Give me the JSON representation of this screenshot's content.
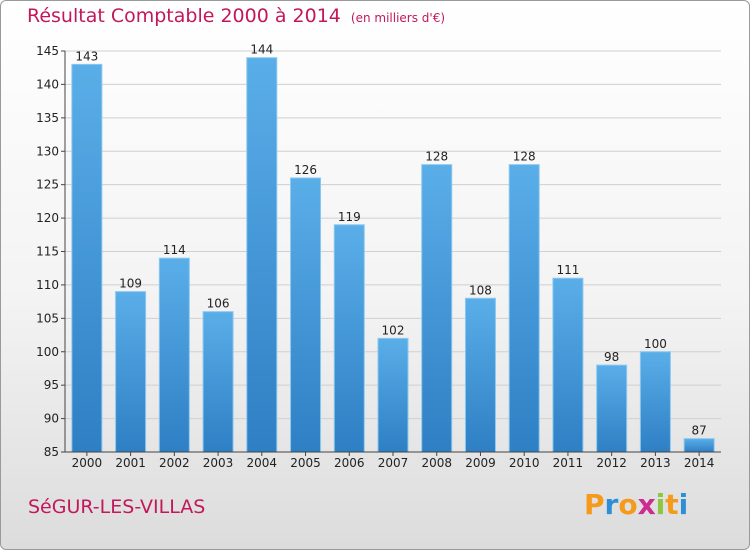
{
  "header": {
    "title": "Résultat Comptable 2000 à 2014",
    "subtitle": "(en milliers d'€)"
  },
  "footer": {
    "commune": "SéGUR-LES-VILLAS",
    "logo_letters": [
      "P",
      "r",
      "o",
      "x",
      "i",
      "t",
      "i"
    ],
    "logo_colors": [
      "#f59a1b",
      "#2f8fd6",
      "#f59a1b",
      "#cc2b8f",
      "#8dc63f",
      "#f59a1b",
      "#2f8fd6"
    ]
  },
  "chart_data": {
    "type": "bar",
    "title": "Résultat Comptable 2000 à 2014",
    "subtitle": "(en milliers d'€)",
    "categories": [
      "2000",
      "2001",
      "2002",
      "2003",
      "2004",
      "2005",
      "2006",
      "2007",
      "2008",
      "2009",
      "2010",
      "2011",
      "2012",
      "2013",
      "2014"
    ],
    "values": [
      143,
      109,
      114,
      106,
      144,
      126,
      119,
      102,
      128,
      108,
      128,
      111,
      98,
      100,
      87
    ],
    "ylim": [
      85,
      145
    ],
    "yticks": [
      85,
      90,
      95,
      100,
      105,
      110,
      115,
      120,
      125,
      130,
      135,
      140,
      145
    ],
    "grid": true,
    "bar_color_light": "#5aaee8",
    "bar_color_dark": "#2e7fc4",
    "data_labels": true
  }
}
